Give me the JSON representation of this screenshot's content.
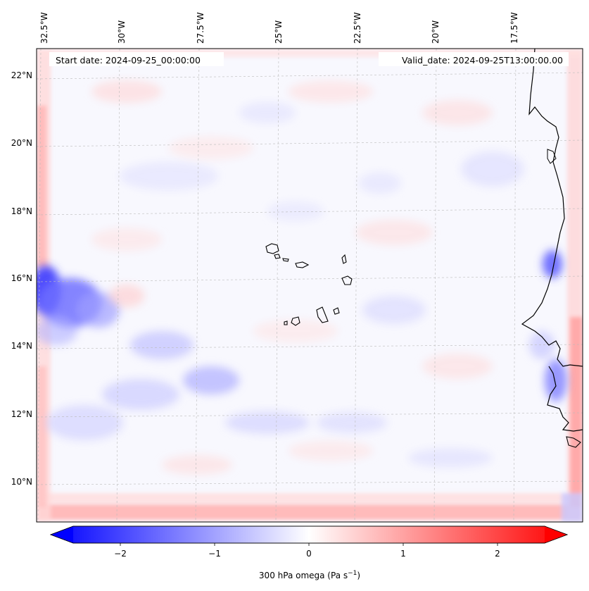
{
  "map": {
    "start_date": "Start date: 2024-09-25_00:00:00",
    "valid_date": "Valid_date: 2024-09-25T13:00:00.00",
    "lon_labels": [
      "32.5°W",
      "30°W",
      "27.5°W",
      "25°W",
      "22.5°W",
      "20°W",
      "17.5°W"
    ],
    "lat_labels": [
      "22°N",
      "20°N",
      "18°N",
      "16°N",
      "14°N",
      "12°N",
      "10°N"
    ],
    "extent": {
      "lon_min": -32.5,
      "lon_max": -15.7,
      "lat_min": 8.9,
      "lat_max": 22.8
    },
    "field": "300 hPa omega",
    "colormap": "bwr",
    "colors": {
      "negative": "#0000ff",
      "zero": "#ffffff",
      "positive": "#ff0000",
      "coastline": "#000000",
      "gridline": "#bbbbbb"
    }
  },
  "colorbar": {
    "label_prefix": "300 hPa omega (Pa s",
    "label_exp": "−1",
    "label_suffix": ")",
    "ticks": [
      "−2",
      "−1",
      "0",
      "1",
      "2"
    ],
    "tick_values": [
      -2,
      -1,
      0,
      1,
      2
    ],
    "range": [
      -2.5,
      2.5
    ],
    "extend": "both"
  }
}
